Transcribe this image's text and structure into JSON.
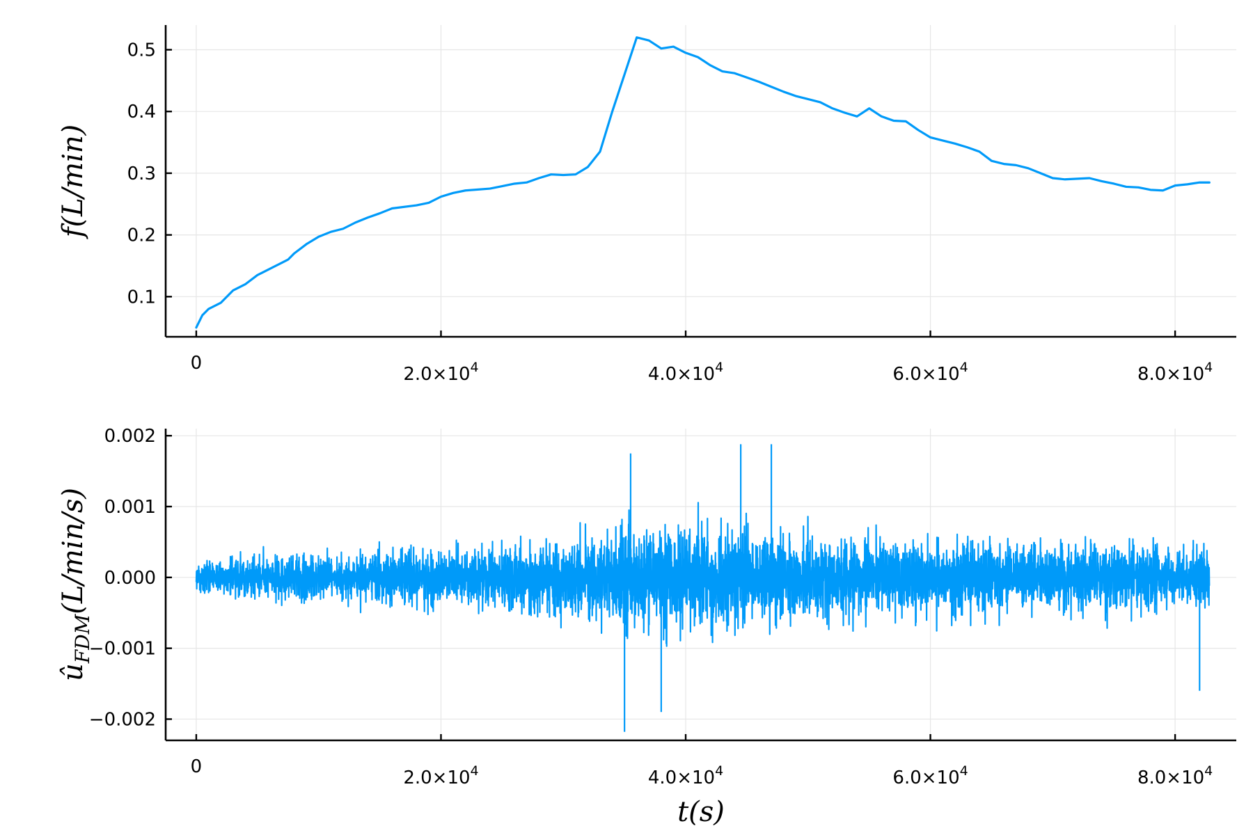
{
  "chart_data": [
    {
      "type": "line",
      "xlabel": "",
      "ylabel": "f(L/min)",
      "xlim": [
        -2500,
        85000
      ],
      "ylim": [
        0.035,
        0.54
      ],
      "grid": true,
      "legend": "none",
      "color": "#009af9",
      "xticks": [
        {
          "value": 0,
          "label": "0"
        },
        {
          "value": 20000,
          "label": "2.0×10⁴"
        },
        {
          "value": 40000,
          "label": "4.0×10⁴"
        },
        {
          "value": 60000,
          "label": "6.0×10⁴"
        },
        {
          "value": 80000,
          "label": "8.0×10⁴"
        }
      ],
      "yticks": [
        {
          "value": 0.1,
          "label": "0.1"
        },
        {
          "value": 0.2,
          "label": "0.2"
        },
        {
          "value": 0.3,
          "label": "0.3"
        },
        {
          "value": 0.4,
          "label": "0.4"
        },
        {
          "value": 0.5,
          "label": "0.5"
        }
      ],
      "series": [
        {
          "x": [
            0,
            500,
            1000,
            2000,
            3000,
            4000,
            5000,
            6000,
            7000,
            7500,
            8000,
            9000,
            10000,
            11000,
            12000,
            13000,
            14000,
            15000,
            16000,
            18000,
            19000,
            20000,
            21000,
            22000,
            24000,
            25000,
            26000,
            27000,
            28000,
            29000,
            30000,
            31000,
            32000,
            33000,
            34000,
            35000,
            35500,
            36000,
            37000,
            38000,
            39000,
            40000,
            41000,
            42000,
            43000,
            44000,
            45000,
            46000,
            47000,
            48000,
            49000,
            50000,
            51000,
            52000,
            53000,
            54000,
            55000,
            56000,
            57000,
            58000,
            59000,
            60000,
            61000,
            62000,
            63000,
            64000,
            65000,
            66000,
            67000,
            68000,
            69000,
            70000,
            71000,
            72000,
            73000,
            74000,
            75000,
            76000,
            77000,
            78000,
            79000,
            80000,
            81000,
            82000,
            82800
          ],
          "y": [
            0.05,
            0.07,
            0.08,
            0.09,
            0.11,
            0.12,
            0.135,
            0.145,
            0.155,
            0.16,
            0.17,
            0.185,
            0.197,
            0.205,
            0.21,
            0.22,
            0.228,
            0.235,
            0.243,
            0.248,
            0.252,
            0.262,
            0.268,
            0.272,
            0.275,
            0.279,
            0.283,
            0.285,
            0.292,
            0.298,
            0.297,
            0.298,
            0.31,
            0.335,
            0.4,
            0.46,
            0.49,
            0.52,
            0.515,
            0.502,
            0.505,
            0.495,
            0.488,
            0.475,
            0.465,
            0.462,
            0.455,
            0.448,
            0.44,
            0.432,
            0.425,
            0.42,
            0.415,
            0.405,
            0.398,
            0.392,
            0.405,
            0.392,
            0.385,
            0.384,
            0.37,
            0.358,
            0.353,
            0.348,
            0.342,
            0.335,
            0.32,
            0.315,
            0.313,
            0.308,
            0.3,
            0.292,
            0.29,
            0.291,
            0.292,
            0.287,
            0.283,
            0.278,
            0.277,
            0.273,
            0.272,
            0.28,
            0.282,
            0.285,
            0.285
          ]
        }
      ]
    },
    {
      "type": "line",
      "xlabel": "t(s)",
      "ylabel": "û_FDM(L/min/s)",
      "xlim": [
        -2500,
        85000
      ],
      "ylim": [
        -0.0023,
        0.0021
      ],
      "grid": true,
      "legend": "none",
      "color": "#009af9",
      "xticks": [
        {
          "value": 0,
          "label": "0"
        },
        {
          "value": 20000,
          "label": "2.0×10⁴"
        },
        {
          "value": 40000,
          "label": "4.0×10⁴"
        },
        {
          "value": 60000,
          "label": "6.0×10⁴"
        },
        {
          "value": 80000,
          "label": "8.0×10⁴"
        }
      ],
      "yticks": [
        {
          "value": -0.002,
          "label": "−0.002"
        },
        {
          "value": -0.001,
          "label": "−0.001"
        },
        {
          "value": 0.0,
          "label": "0.000"
        },
        {
          "value": 0.001,
          "label": "0.001"
        },
        {
          "value": 0.002,
          "label": "0.002"
        }
      ],
      "series": [
        {
          "x_range": [
            0,
            82800
          ],
          "mean": 0.0,
          "envelope_x": [
            0,
            5000,
            10000,
            15000,
            20000,
            25000,
            30000,
            33000,
            35000,
            38000,
            42000,
            46000,
            50000,
            55000,
            60000,
            65000,
            70000,
            75000,
            80000,
            82800
          ],
          "envelope_amplitude": [
            0.00045,
            0.00055,
            0.0006,
            0.00068,
            0.00075,
            0.00085,
            0.00095,
            0.0012,
            0.0014,
            0.0014,
            0.00125,
            0.0012,
            0.0011,
            0.001,
            0.001,
            0.00095,
            0.0009,
            0.00085,
            0.0008,
            0.0008
          ],
          "peaks": [
            {
              "x": 35500,
              "y": 0.00175
            },
            {
              "x": 35000,
              "y": -0.00218
            },
            {
              "x": 44500,
              "y": 0.00188
            },
            {
              "x": 47000,
              "y": 0.00188
            },
            {
              "x": 38000,
              "y": -0.0019
            },
            {
              "x": 82000,
              "y": -0.0016
            }
          ]
        }
      ]
    }
  ]
}
